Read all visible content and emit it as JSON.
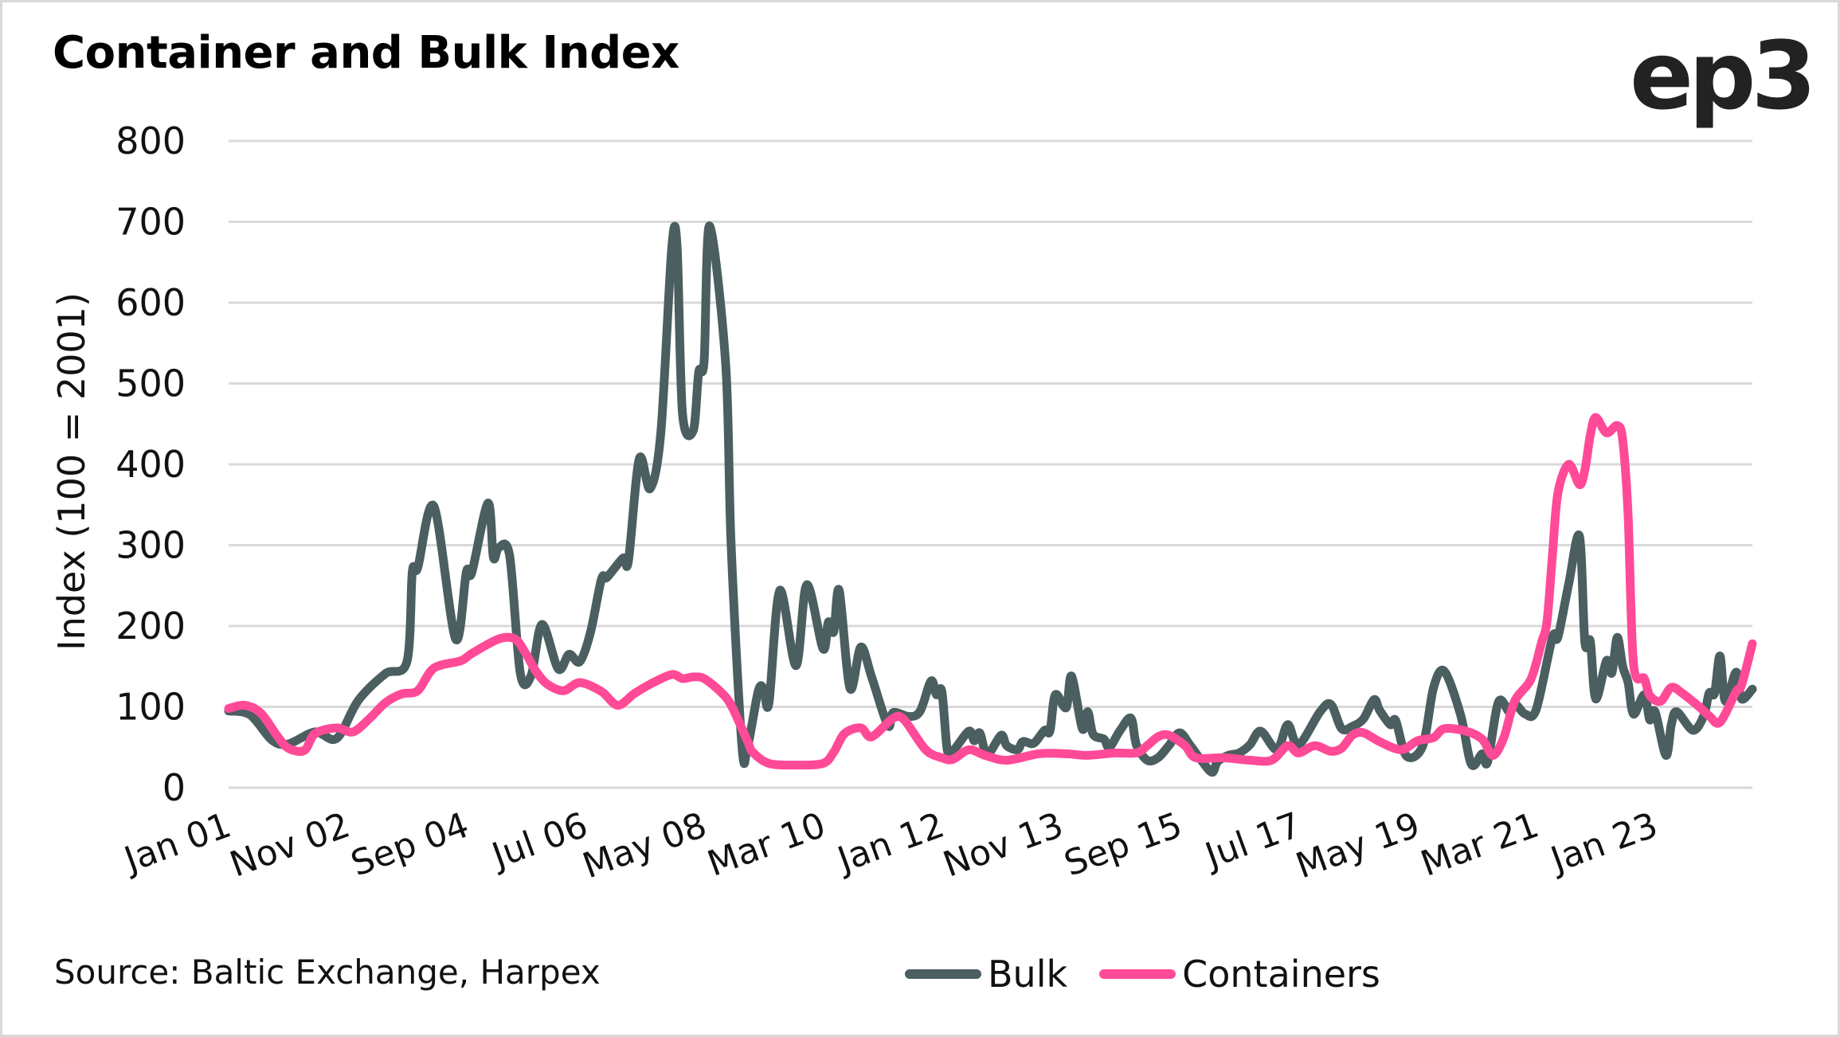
{
  "header": {
    "title": "Container and Bulk Index",
    "logo_text": "ep3"
  },
  "footer": {
    "source": "Source: Baltic Exchange, Harpex"
  },
  "colors": {
    "bulk": "#4b5e60",
    "containers": "#ff4a97",
    "grid": "#d9d9d9"
  },
  "chart_data": {
    "type": "line",
    "title": "Container and Bulk Index",
    "xlabel": "",
    "ylabel": "Index (100 = 2001)",
    "ylim": [
      0,
      800
    ],
    "yticks": [
      0,
      100,
      200,
      300,
      400,
      500,
      600,
      700,
      800
    ],
    "x_start": "2001-01",
    "x_end": "2024-07",
    "xtick_labels": [
      {
        "label": "Jan 01",
        "date": "2001-01"
      },
      {
        "label": "Nov 02",
        "date": "2002-11"
      },
      {
        "label": "Sep 04",
        "date": "2004-09"
      },
      {
        "label": "Jul 06",
        "date": "2006-07"
      },
      {
        "label": "May 08",
        "date": "2008-05"
      },
      {
        "label": "Mar 10",
        "date": "2010-03"
      },
      {
        "label": "Jan 12",
        "date": "2012-01"
      },
      {
        "label": "Nov 13",
        "date": "2013-11"
      },
      {
        "label": "Sep 15",
        "date": "2015-09"
      },
      {
        "label": "Jul 17",
        "date": "2017-07"
      },
      {
        "label": "May 19",
        "date": "2019-05"
      },
      {
        "label": "Mar 21",
        "date": "2021-03"
      },
      {
        "label": "Jan 23",
        "date": "2023-01"
      }
    ],
    "grid": true,
    "legend_position": "bottom",
    "series": [
      {
        "name": "Bulk",
        "color": "#4b5e60",
        "points": [
          [
            "2001-01",
            95
          ],
          [
            "2001-05",
            90
          ],
          [
            "2001-09",
            59
          ],
          [
            "2001-12",
            54
          ],
          [
            "2002-05",
            69
          ],
          [
            "2002-09",
            61
          ],
          [
            "2003-01",
            108
          ],
          [
            "2003-06",
            141
          ],
          [
            "2003-10",
            156
          ],
          [
            "2003-11",
            267
          ],
          [
            "2003-12",
            272
          ],
          [
            "2004-03",
            348
          ],
          [
            "2004-07",
            184
          ],
          [
            "2004-09",
            267
          ],
          [
            "2004-10",
            266
          ],
          [
            "2005-01",
            352
          ],
          [
            "2005-02",
            285
          ],
          [
            "2005-03",
            297
          ],
          [
            "2005-05",
            287
          ],
          [
            "2005-07",
            141
          ],
          [
            "2005-09",
            139
          ],
          [
            "2005-11",
            202
          ],
          [
            "2006-02",
            147
          ],
          [
            "2006-04",
            165
          ],
          [
            "2006-06",
            156
          ],
          [
            "2006-08",
            193
          ],
          [
            "2006-10",
            258
          ],
          [
            "2006-11",
            260
          ],
          [
            "2007-02",
            284
          ],
          [
            "2007-03",
            281
          ],
          [
            "2007-05",
            407
          ],
          [
            "2007-07",
            370
          ],
          [
            "2007-09",
            440
          ],
          [
            "2007-11",
            667
          ],
          [
            "2007-12",
            670
          ],
          [
            "2008-01",
            463
          ],
          [
            "2008-03",
            442
          ],
          [
            "2008-04",
            514
          ],
          [
            "2008-05",
            528
          ],
          [
            "2008-06",
            695
          ],
          [
            "2008-09",
            523
          ],
          [
            "2008-10",
            300
          ],
          [
            "2008-12",
            51
          ],
          [
            "2009-01",
            49
          ],
          [
            "2009-03",
            119
          ],
          [
            "2009-04",
            123
          ],
          [
            "2009-05",
            105
          ],
          [
            "2009-07",
            244
          ],
          [
            "2009-10",
            151
          ],
          [
            "2009-12",
            251
          ],
          [
            "2010-03",
            172
          ],
          [
            "2010-04",
            205
          ],
          [
            "2010-05",
            193
          ],
          [
            "2010-06",
            244
          ],
          [
            "2010-08",
            123
          ],
          [
            "2010-10",
            174
          ],
          [
            "2010-12",
            137
          ],
          [
            "2011-03",
            77
          ],
          [
            "2011-04",
            93
          ],
          [
            "2011-07",
            88
          ],
          [
            "2011-09",
            95
          ],
          [
            "2011-11",
            132
          ],
          [
            "2011-12",
            115
          ],
          [
            "2012-01",
            119
          ],
          [
            "2012-02",
            47
          ],
          [
            "2012-03",
            45
          ],
          [
            "2012-06",
            70
          ],
          [
            "2012-07",
            58
          ],
          [
            "2012-08",
            68
          ],
          [
            "2012-09",
            45
          ],
          [
            "2012-10",
            45
          ],
          [
            "2012-12",
            65
          ],
          [
            "2013-01",
            52
          ],
          [
            "2013-03",
            47
          ],
          [
            "2013-04",
            57
          ],
          [
            "2013-06",
            55
          ],
          [
            "2013-08",
            71
          ],
          [
            "2013-09",
            70
          ],
          [
            "2013-10",
            115
          ],
          [
            "2013-12",
            99
          ],
          [
            "2014-01",
            138
          ],
          [
            "2014-03",
            73
          ],
          [
            "2014-04",
            94
          ],
          [
            "2014-05",
            66
          ],
          [
            "2014-07",
            60
          ],
          [
            "2014-08",
            50
          ],
          [
            "2014-10",
            71
          ],
          [
            "2014-12",
            86
          ],
          [
            "2015-01",
            53
          ],
          [
            "2015-03",
            34
          ],
          [
            "2015-05",
            37
          ],
          [
            "2015-07",
            52
          ],
          [
            "2015-09",
            68
          ],
          [
            "2015-11",
            52
          ],
          [
            "2016-01",
            34
          ],
          [
            "2016-03",
            19
          ],
          [
            "2016-04",
            32
          ],
          [
            "2016-06",
            40
          ],
          [
            "2016-08",
            43
          ],
          [
            "2016-10",
            53
          ],
          [
            "2016-12",
            70
          ],
          [
            "2017-03",
            47
          ],
          [
            "2017-05",
            78
          ],
          [
            "2017-07",
            53
          ],
          [
            "2017-11",
            94
          ],
          [
            "2018-01",
            103
          ],
          [
            "2018-03",
            73
          ],
          [
            "2018-05",
            76
          ],
          [
            "2018-07",
            85
          ],
          [
            "2018-09",
            109
          ],
          [
            "2018-10",
            96
          ],
          [
            "2018-12",
            78
          ],
          [
            "2019-01",
            83
          ],
          [
            "2019-03",
            39
          ],
          [
            "2019-06",
            52
          ],
          [
            "2019-08",
            124
          ],
          [
            "2019-10",
            144
          ],
          [
            "2020-01",
            90
          ],
          [
            "2020-03",
            29
          ],
          [
            "2020-05",
            42
          ],
          [
            "2020-06",
            32
          ],
          [
            "2020-08",
            106
          ],
          [
            "2020-10",
            94
          ],
          [
            "2020-11",
            104
          ],
          [
            "2021-01",
            91
          ],
          [
            "2021-03",
            97
          ],
          [
            "2021-06",
            186
          ],
          [
            "2021-07",
            186
          ],
          [
            "2021-09",
            252
          ],
          [
            "2021-11",
            311
          ],
          [
            "2021-12",
            180
          ],
          [
            "2022-01",
            181
          ],
          [
            "2022-02",
            110
          ],
          [
            "2022-04",
            157
          ],
          [
            "2022-05",
            142
          ],
          [
            "2022-06",
            186
          ],
          [
            "2022-07",
            150
          ],
          [
            "2022-08",
            130
          ],
          [
            "2022-09",
            91
          ],
          [
            "2022-11",
            115
          ],
          [
            "2022-12",
            84
          ],
          [
            "2023-01",
            94
          ],
          [
            "2023-03",
            40
          ],
          [
            "2023-04",
            78
          ],
          [
            "2023-05",
            94
          ],
          [
            "2023-08",
            71
          ],
          [
            "2023-10",
            89
          ],
          [
            "2023-11",
            117
          ],
          [
            "2023-12",
            117
          ],
          [
            "2024-01",
            163
          ],
          [
            "2024-02",
            107
          ],
          [
            "2024-04",
            143
          ],
          [
            "2024-05",
            110
          ],
          [
            "2024-07",
            122
          ]
        ]
      },
      {
        "name": "Containers",
        "color": "#ff4a97",
        "points": [
          [
            "2001-01",
            98
          ],
          [
            "2001-04",
            102
          ],
          [
            "2001-07",
            92
          ],
          [
            "2001-10",
            64
          ],
          [
            "2001-12",
            49
          ],
          [
            "2002-03",
            46
          ],
          [
            "2002-05",
            67
          ],
          [
            "2002-09",
            74
          ],
          [
            "2002-12",
            69
          ],
          [
            "2003-03",
            85
          ],
          [
            "2003-06",
            105
          ],
          [
            "2003-09",
            116
          ],
          [
            "2003-12",
            120
          ],
          [
            "2004-03",
            148
          ],
          [
            "2004-08",
            157
          ],
          [
            "2004-10",
            166
          ],
          [
            "2005-03",
            184
          ],
          [
            "2005-06",
            184
          ],
          [
            "2005-08",
            166
          ],
          [
            "2005-10",
            143
          ],
          [
            "2005-12",
            128
          ],
          [
            "2006-03",
            120
          ],
          [
            "2006-06",
            130
          ],
          [
            "2006-10",
            119
          ],
          [
            "2007-01",
            102
          ],
          [
            "2007-04",
            116
          ],
          [
            "2007-07",
            128
          ],
          [
            "2007-11",
            140
          ],
          [
            "2008-01",
            135
          ],
          [
            "2008-03",
            137
          ],
          [
            "2008-05",
            135
          ],
          [
            "2008-08",
            119
          ],
          [
            "2008-10",
            102
          ],
          [
            "2009-01",
            58
          ],
          [
            "2009-02",
            44
          ],
          [
            "2009-05",
            30
          ],
          [
            "2009-10",
            28
          ],
          [
            "2010-03",
            30
          ],
          [
            "2010-05",
            44
          ],
          [
            "2010-07",
            67
          ],
          [
            "2010-10",
            74
          ],
          [
            "2010-12",
            63
          ],
          [
            "2011-04",
            86
          ],
          [
            "2011-06",
            84
          ],
          [
            "2011-10",
            47
          ],
          [
            "2012-01",
            37
          ],
          [
            "2012-03",
            35
          ],
          [
            "2012-06",
            47
          ],
          [
            "2012-09",
            40
          ],
          [
            "2013-01",
            34
          ],
          [
            "2013-07",
            42
          ],
          [
            "2013-12",
            42
          ],
          [
            "2014-04",
            40
          ],
          [
            "2014-09",
            43
          ],
          [
            "2015-01",
            43
          ],
          [
            "2015-03",
            52
          ],
          [
            "2015-05",
            63
          ],
          [
            "2015-07",
            65
          ],
          [
            "2015-10",
            52
          ],
          [
            "2015-12",
            37
          ],
          [
            "2016-05",
            37
          ],
          [
            "2016-10",
            34
          ],
          [
            "2017-02",
            34
          ],
          [
            "2017-05",
            52
          ],
          [
            "2017-07",
            43
          ],
          [
            "2017-10",
            52
          ],
          [
            "2018-01",
            45
          ],
          [
            "2018-03",
            49
          ],
          [
            "2018-05",
            65
          ],
          [
            "2018-07",
            68
          ],
          [
            "2018-10",
            57
          ],
          [
            "2019-02",
            47
          ],
          [
            "2019-05",
            58
          ],
          [
            "2019-08",
            62
          ],
          [
            "2019-10",
            73
          ],
          [
            "2020-02",
            70
          ],
          [
            "2020-05",
            60
          ],
          [
            "2020-07",
            40
          ],
          [
            "2020-09",
            62
          ],
          [
            "2020-11",
            107
          ],
          [
            "2021-02",
            134
          ],
          [
            "2021-04",
            180
          ],
          [
            "2021-05",
            206
          ],
          [
            "2021-06",
            288
          ],
          [
            "2021-07",
            364
          ],
          [
            "2021-09",
            400
          ],
          [
            "2021-11",
            375
          ],
          [
            "2021-12",
            393
          ],
          [
            "2022-01",
            436
          ],
          [
            "2022-02",
            458
          ],
          [
            "2022-04",
            439
          ],
          [
            "2022-06",
            448
          ],
          [
            "2022-07",
            430
          ],
          [
            "2022-08",
            337
          ],
          [
            "2022-09",
            153
          ],
          [
            "2022-11",
            135
          ],
          [
            "2022-12",
            114
          ],
          [
            "2023-02",
            107
          ],
          [
            "2023-04",
            124
          ],
          [
            "2023-06",
            117
          ],
          [
            "2023-09",
            101
          ],
          [
            "2023-11",
            89
          ],
          [
            "2024-01",
            81
          ],
          [
            "2024-04",
            119
          ],
          [
            "2024-05",
            127
          ],
          [
            "2024-07",
            178
          ]
        ]
      }
    ]
  }
}
